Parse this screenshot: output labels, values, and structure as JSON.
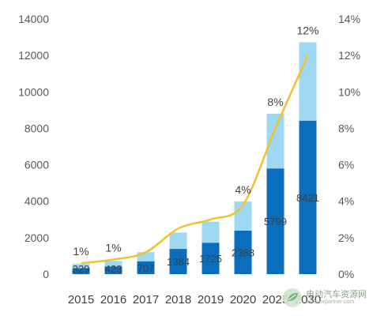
{
  "chart_data": {
    "type": "bar",
    "stacked": true,
    "categories": [
      "2015",
      "2016",
      "2017",
      "2018",
      "2019",
      "2020",
      "2025",
      "2030"
    ],
    "series": [
      {
        "values": [
          329,
          423,
          707,
          1384,
          1725,
          2388,
          5799,
          8421
        ],
        "labels": [
          "329",
          "423",
          "707",
          "1384",
          "1725",
          "2388",
          "5799",
          "8421"
        ],
        "color": "#0a6ebd"
      },
      {
        "values": [
          230,
          300,
          500,
          900,
          1150,
          1600,
          3000,
          4300
        ],
        "color": "#9fd8f2"
      }
    ],
    "line": {
      "axis": "right",
      "values": [
        0.6,
        0.8,
        1.2,
        2.5,
        3.0,
        3.8,
        8.0,
        12.0
      ],
      "labels": [
        "1%",
        "1%",
        "",
        "",
        "",
        "4%",
        "8%",
        "12%"
      ],
      "color": "#f2c12e"
    },
    "ylim": [
      0,
      14000
    ],
    "yticks": [
      "0",
      "2000",
      "4000",
      "6000",
      "8000",
      "10000",
      "12000",
      "14000"
    ],
    "y2lim": [
      0,
      14
    ],
    "y2ticks": [
      "0%",
      "2%",
      "4%",
      "6%",
      "8%",
      "10%",
      "12%",
      "14%"
    ],
    "title": "",
    "xlabel": "",
    "ylabel": "",
    "grid": false,
    "legend": "none"
  },
  "watermark": {
    "main": "电动汽车资源网",
    "sub": "www.evpartner.com",
    "icon": "leaf-logo-icon"
  }
}
